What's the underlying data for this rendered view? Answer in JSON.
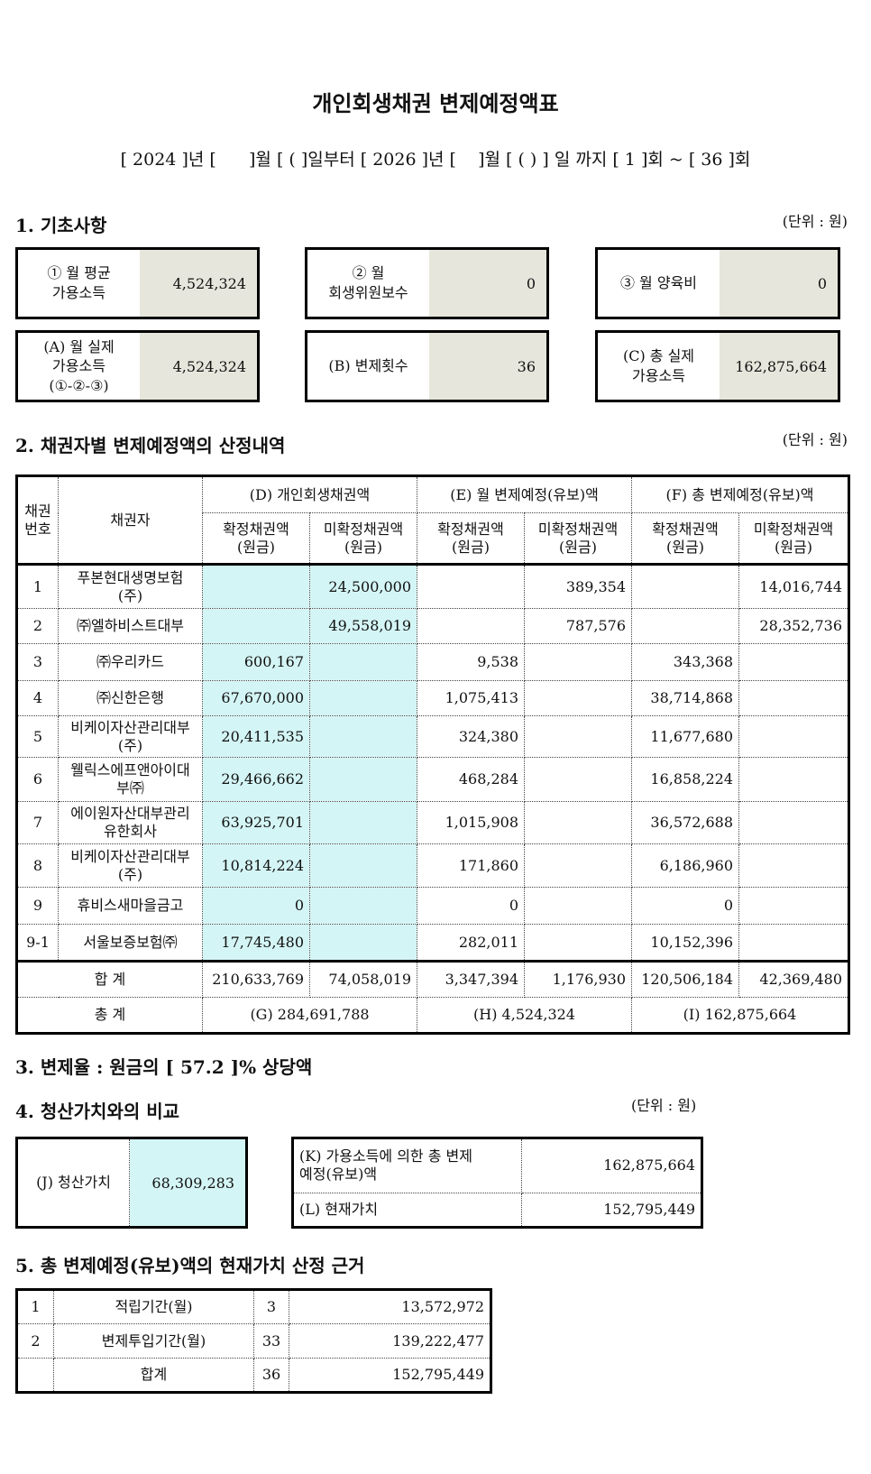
{
  "title": "개인회생채권 변제예정액표",
  "period": "[ 2024 ]년 [      ]월 [ ( ]일부터 [ 2026 ]년 [    ]월 [ ( ) ] 일 까지 [ 1 ]회 ~ [ 36 ]회",
  "section1": {
    "heading": "1. 기초사항",
    "unit": "(단위 : 원)",
    "boxes": [
      {
        "label": "① 월 평균\n가용소득",
        "value": "4,524,324"
      },
      {
        "label": "② 월\n회생위원보수",
        "value": "0"
      },
      {
        "label": "③ 월 양육비",
        "value": "0"
      },
      {
        "label": "(A) 월 실제\n가용소득\n(①-②-③)",
        "value": "4,524,324"
      },
      {
        "label": "(B) 변제횟수",
        "value": "36"
      },
      {
        "label": "(C) 총 실제\n가용소득",
        "value": "162,875,664"
      }
    ]
  },
  "section2": {
    "heading": "2. 채권자별 변제예정액의 산정내역",
    "unit": "(단위 : 원)",
    "no_header": "채권\n번호",
    "name_header": "채권자",
    "group_headers": [
      "(D) 개인회생채권액",
      "(E) 월 변제예정(유보)액",
      "(F) 총 변제예정(유보)액"
    ],
    "sub_headers": [
      "확정채권액\n(원금)",
      "미확정채권액\n(원금)",
      "확정채권액\n(원금)",
      "미확정채권액\n(원금)",
      "확정채권액\n(원금)",
      "미확정채권액\n(원금)"
    ],
    "rows": [
      [
        "1",
        "푸본현대생명보험\n(주)",
        null,
        "24,500,000",
        null,
        "389,354",
        null,
        "14,016,744"
      ],
      [
        "2",
        "㈜엘하비스트대부",
        null,
        "49,558,019",
        null,
        "787,576",
        null,
        "28,352,736"
      ],
      [
        "3",
        "㈜우리카드",
        "600,167",
        null,
        "9,538",
        null,
        "343,368",
        null
      ],
      [
        "4",
        "㈜신한은행",
        "67,670,000",
        null,
        "1,075,413",
        null,
        "38,714,868",
        null
      ],
      [
        "5",
        "비케이자산관리대부\n(주)",
        "20,411,535",
        null,
        "324,380",
        null,
        "11,677,680",
        null
      ],
      [
        "6",
        "웰릭스에프앤아이대\n부㈜",
        "29,466,662",
        null,
        "468,284",
        null,
        "16,858,224",
        null
      ],
      [
        "7",
        "에이원자산대부관리\n유한회사",
        "63,925,701",
        null,
        "1,015,908",
        null,
        "36,572,688",
        null
      ],
      [
        "8",
        "비케이자산관리대부\n(주)",
        "10,814,224",
        null,
        "171,860",
        null,
        "6,186,960",
        null
      ],
      [
        "9",
        "휴비스새마을금고",
        "0",
        null,
        "0",
        null,
        "0",
        null
      ],
      [
        "9-1",
        "서울보증보험㈜",
        "17,745,480",
        null,
        "282,011",
        null,
        "10,152,396",
        null
      ]
    ],
    "total_label": "합 계",
    "totals": [
      "210,633,769",
      "74,058,019",
      "3,347,394",
      "1,176,930",
      "120,506,184",
      "42,369,480"
    ],
    "grand_label": "총 계",
    "grand_totals": [
      "(G) 284,691,788",
      "(H) 4,524,324",
      "(I) 162,875,664"
    ]
  },
  "section3": {
    "heading": "3. 변제율 : 원금의 [ 57.2 ]% 상당액"
  },
  "section4": {
    "heading": "4. 청산가치와의 비교",
    "unit": "(단위 : 원)",
    "j_label": "(J) 청산가치",
    "j_value": "68,309,283",
    "rows": [
      [
        "(K) 가용소득에 의한 총 변제\n예정(유보)액",
        "162,875,664"
      ],
      [
        "(L) 현재가치",
        "152,795,449"
      ]
    ]
  },
  "section5": {
    "heading": "5. 총 변제예정(유보)액의 현재가치 산정 근거",
    "rows": [
      [
        "1",
        "적립기간(월)",
        "3",
        "13,572,972"
      ],
      [
        "2",
        "변제투입기간(월)",
        "33",
        "139,222,477"
      ],
      [
        null,
        "합계",
        "36",
        "152,795,449"
      ]
    ]
  }
}
